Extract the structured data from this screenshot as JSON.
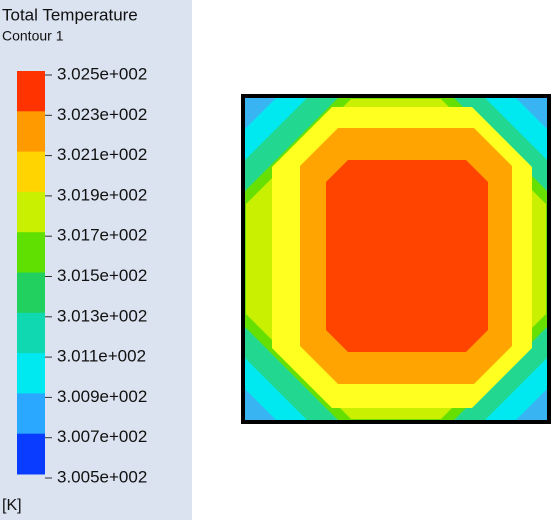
{
  "legend": {
    "title": "Total Temperature",
    "subtitle": "Contour 1",
    "labels": [
      "3.025e+002",
      "3.023e+002",
      "3.021e+002",
      "3.019e+002",
      "3.017e+002",
      "3.015e+002",
      "3.013e+002",
      "3.011e+002",
      "3.009e+002",
      "3.007e+002",
      "3.005e+002"
    ],
    "unit": "[K]"
  }
}
